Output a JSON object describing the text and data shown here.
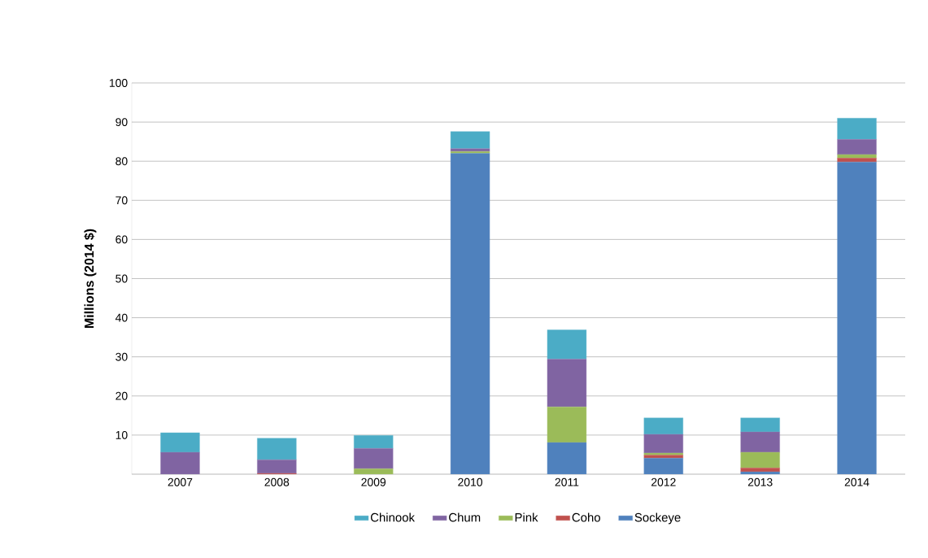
{
  "chart_data": {
    "type": "bar",
    "stacked": true,
    "ylabel": "Millions (2014 $)",
    "categories": [
      "2007",
      "2008",
      "2009",
      "2010",
      "2011",
      "2012",
      "2013",
      "2014"
    ],
    "series": [
      {
        "name": "Sockeye",
        "color": "#4f81bd",
        "values": [
          0,
          0,
          0,
          82.0,
          8.1,
          4.1,
          0.6,
          79.8
        ]
      },
      {
        "name": "Coho",
        "color": "#c0504d",
        "values": [
          0,
          0.2,
          0,
          0,
          0,
          0.8,
          1.0,
          1.0
        ]
      },
      {
        "name": "Pink",
        "color": "#9bbb59",
        "values": [
          0,
          0,
          1.4,
          0.5,
          9.1,
          0.5,
          4.0,
          0.9
        ]
      },
      {
        "name": "Chum",
        "color": "#8064a2",
        "values": [
          5.6,
          3.5,
          5.2,
          0.7,
          12.2,
          4.8,
          5.2,
          3.9
        ]
      },
      {
        "name": "Chinook",
        "color": "#4bacc6",
        "values": [
          5.0,
          5.5,
          3.3,
          4.4,
          7.5,
          4.2,
          3.6,
          5.4
        ]
      }
    ],
    "ylim": [
      0,
      100
    ],
    "yticks": [
      {
        "value": 0,
        "label": null
      },
      10,
      20,
      30,
      40,
      50,
      60,
      70,
      80,
      90,
      100
    ],
    "grid": "y",
    "legend": "bottom"
  }
}
